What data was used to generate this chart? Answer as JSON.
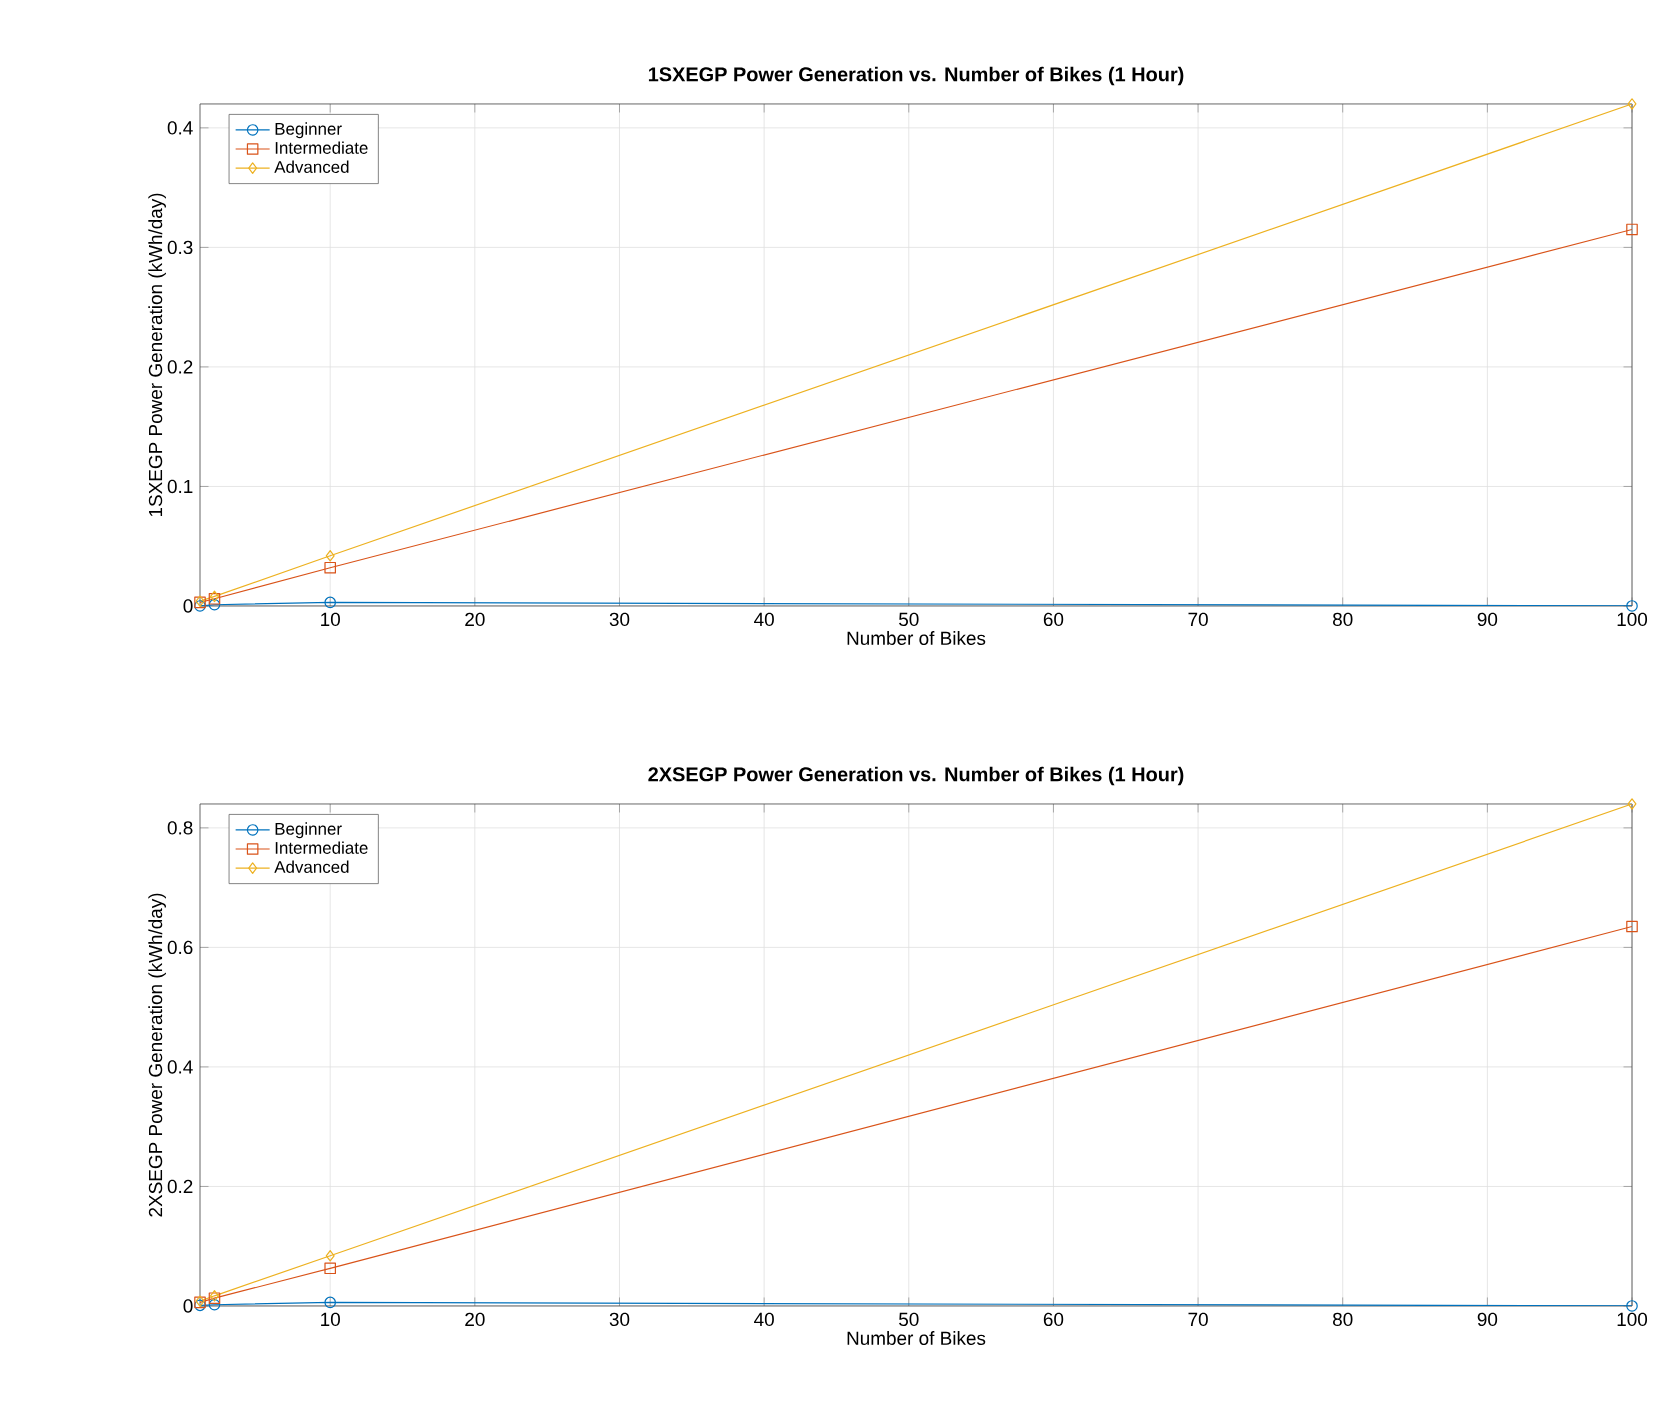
{
  "chart_data": [
    {
      "type": "line",
      "title": "1SXEGP Power Generation vs. Number of Bikes (1 Hour)",
      "xlabel": "Number of Bikes",
      "ylabel": "1SXEGP Power Generation (kWh/day)",
      "x": [
        1,
        2,
        10,
        100
      ],
      "series": [
        {
          "name": "Beginner",
          "color": "#0072bd",
          "marker": "circle",
          "values": [
            0,
            0.001,
            0.003,
            0
          ]
        },
        {
          "name": "Intermediate",
          "color": "#d95319",
          "marker": "square",
          "values": [
            0.003,
            0.006,
            0.032,
            0.315
          ]
        },
        {
          "name": "Advanced",
          "color": "#edb120",
          "marker": "diamond",
          "values": [
            0.004,
            0.008,
            0.042,
            0.42
          ]
        }
      ],
      "xlim": [
        1,
        100
      ],
      "xticks": [
        10,
        20,
        30,
        40,
        50,
        60,
        70,
        80,
        90,
        100
      ],
      "ylim": [
        0,
        0.42
      ],
      "yticks": [
        0,
        0.1,
        0.2,
        0.3,
        0.4
      ],
      "grid": true,
      "legend": "top left"
    },
    {
      "type": "line",
      "title": "2XSEGP Power Generation vs. Number of Bikes (1 Hour)",
      "xlabel": "Number of Bikes",
      "ylabel": "2XSEGP Power Generation (kWh/day)",
      "x": [
        1,
        2,
        10,
        100
      ],
      "series": [
        {
          "name": "Beginner",
          "color": "#0072bd",
          "marker": "circle",
          "values": [
            0.001,
            0.002,
            0.006,
            0
          ]
        },
        {
          "name": "Intermediate",
          "color": "#d95319",
          "marker": "square",
          "values": [
            0.006,
            0.013,
            0.063,
            0.635
          ]
        },
        {
          "name": "Advanced",
          "color": "#edb120",
          "marker": "diamond",
          "values": [
            0.008,
            0.017,
            0.084,
            0.84
          ]
        }
      ],
      "xlim": [
        1,
        100
      ],
      "xticks": [
        10,
        20,
        30,
        40,
        50,
        60,
        70,
        80,
        90,
        100
      ],
      "ylim": [
        0,
        0.84
      ],
      "yticks": [
        0,
        0.2,
        0.4,
        0.6,
        0.8
      ],
      "grid": true,
      "legend": "top left"
    }
  ]
}
